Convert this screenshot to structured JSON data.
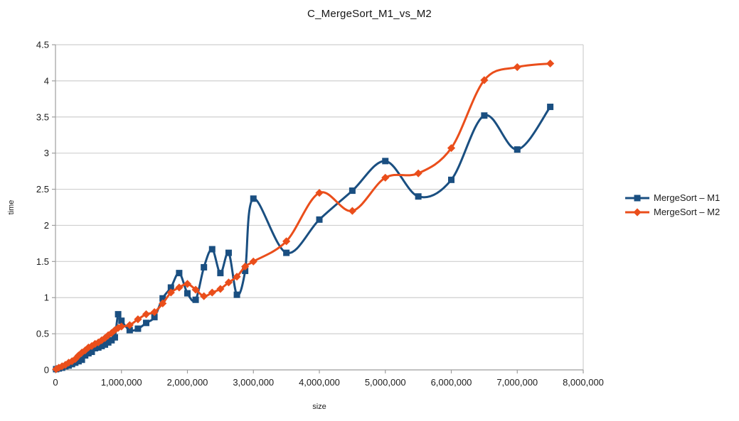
{
  "chart_data": {
    "type": "line",
    "title": "C_MergeSort_M1_vs_M2",
    "xlabel": "size",
    "ylabel": "time",
    "xlim": [
      0,
      8000000
    ],
    "ylim": [
      0,
      4.5
    ],
    "x_tick_step": 1000000,
    "y_tick_step": 0.5,
    "grid": "horizontal",
    "smooth_lines": true,
    "legend_position": "right",
    "x_tick_labels": [
      "0",
      "1,000,000",
      "2,000,000",
      "3,000,000",
      "4,000,000",
      "5,000,000",
      "6,000,000",
      "7,000,000",
      "8,000,000"
    ],
    "y_tick_labels": [
      "0",
      "0.5",
      "1",
      "1.5",
      "2",
      "2.5",
      "3",
      "3.5",
      "4",
      "4.5"
    ],
    "x": [
      10000,
      50000,
      100000,
      150000,
      200000,
      250000,
      300000,
      350000,
      400000,
      450000,
      500000,
      550000,
      600000,
      650000,
      700000,
      750000,
      800000,
      850000,
      900000,
      950000,
      1000000,
      1125000,
      1250000,
      1375000,
      1500000,
      1625000,
      1750000,
      1875000,
      2000000,
      2125000,
      2250000,
      2375000,
      2500000,
      2625000,
      2750000,
      2875000,
      3000000,
      3500000,
      4000000,
      4500000,
      5000000,
      5500000,
      6000000,
      6500000,
      7000000,
      7500000
    ],
    "series": [
      {
        "id": "m1",
        "name": "MergeSort – M1",
        "color": "#1a4f81",
        "marker": "square",
        "values": [
          0.01,
          0.02,
          0.03,
          0.05,
          0.06,
          0.08,
          0.1,
          0.12,
          0.14,
          0.2,
          0.23,
          0.25,
          0.3,
          0.31,
          0.33,
          0.35,
          0.38,
          0.41,
          0.45,
          0.77,
          0.68,
          0.55,
          0.57,
          0.65,
          0.73,
          0.99,
          1.14,
          1.34,
          1.06,
          0.97,
          1.42,
          1.67,
          1.34,
          1.62,
          1.04,
          1.37,
          2.37,
          1.62,
          2.08,
          2.48,
          2.89,
          2.4,
          2.63,
          3.52,
          3.05,
          3.64
        ]
      },
      {
        "id": "m2",
        "name": "MergeSort – M2",
        "color": "#ea4e1b",
        "marker": "diamond",
        "values": [
          0.01,
          0.03,
          0.05,
          0.07,
          0.1,
          0.12,
          0.15,
          0.2,
          0.24,
          0.27,
          0.31,
          0.33,
          0.36,
          0.38,
          0.41,
          0.44,
          0.48,
          0.51,
          0.55,
          0.58,
          0.6,
          0.62,
          0.7,
          0.77,
          0.8,
          0.92,
          1.07,
          1.14,
          1.19,
          1.11,
          1.02,
          1.07,
          1.12,
          1.21,
          1.29,
          1.43,
          1.5,
          1.78,
          2.45,
          2.2,
          2.66,
          2.72,
          3.07,
          4.01,
          4.19,
          4.24
        ]
      }
    ]
  },
  "colors": {
    "background": "#ffffff",
    "gridline": "#cfcfcf",
    "axis": "#9e9e9e",
    "tick_text": "#1c1c1c",
    "series_m1": "#1a4f81",
    "series_m2": "#ea4e1b"
  },
  "layout_values": {
    "tick_font_px": "13"
  }
}
